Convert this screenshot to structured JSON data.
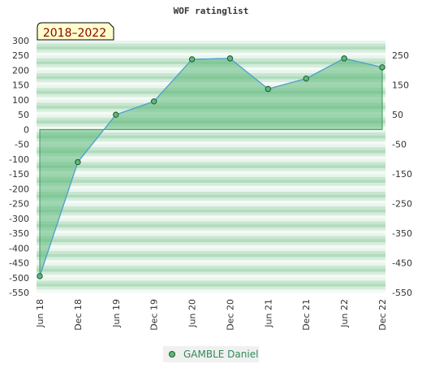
{
  "chart_data": {
    "type": "area",
    "title": "WOF ratinglist",
    "badge": "2018–2022",
    "x": [
      "Jun 18",
      "Dec 18",
      "Jun 19",
      "Dec 19",
      "Jun 20",
      "Dec 20",
      "Jun 21",
      "Dec 21",
      "Jun 22",
      "Dec 22"
    ],
    "series": [
      {
        "name": "GAMBLE Daniel",
        "values": [
          -495,
          -110,
          50,
          95,
          237,
          240,
          137,
          172,
          240,
          210
        ]
      }
    ],
    "ylim": [
      -550,
      300
    ],
    "yticks_left": [
      300,
      250,
      200,
      150,
      100,
      50,
      0,
      -50,
      -100,
      -150,
      -200,
      -250,
      -300,
      -350,
      -400,
      -450,
      -500,
      -550
    ],
    "yticks_right": [
      250,
      150,
      50,
      -50,
      -150,
      -250,
      -350,
      -450,
      -550
    ],
    "legend_position": "bottom",
    "colors": {
      "fill": "#5cb87a",
      "line": "#4a9fd8",
      "marker": "#5cb87a",
      "legend_text": "#2e8b57",
      "badge_bg": "#ffffcc",
      "badge_text": "#8b0000"
    }
  }
}
